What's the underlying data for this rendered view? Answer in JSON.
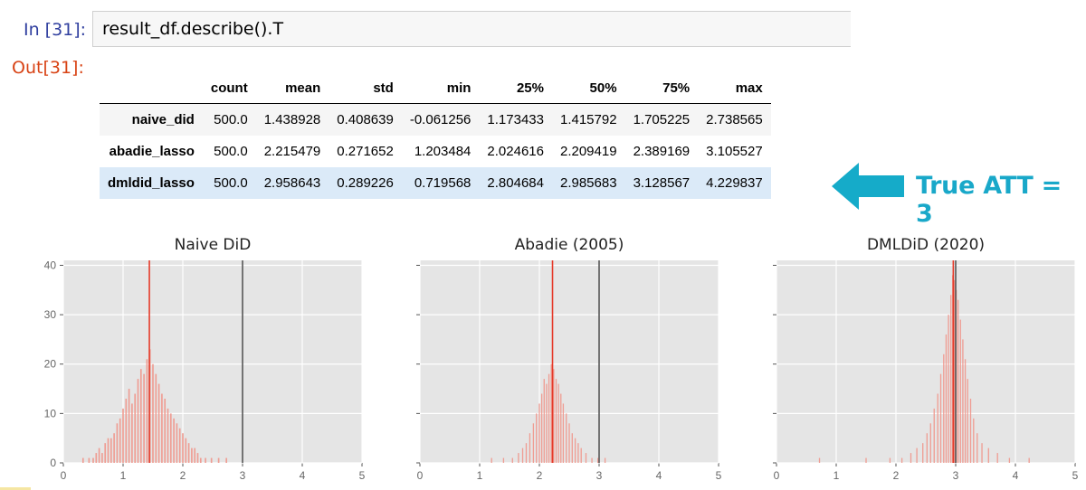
{
  "notebook": {
    "input_prompt": "In [31]:",
    "output_prompt": "Out[31]:",
    "code": "result_df.describe().T"
  },
  "table": {
    "columns": [
      "count",
      "mean",
      "std",
      "min",
      "25%",
      "50%",
      "75%",
      "max"
    ],
    "rows": [
      {
        "index": "naive_did",
        "values": [
          "500.0",
          "1.438928",
          "0.408639",
          "-0.061256",
          "1.173433",
          "1.415792",
          "1.705225",
          "2.738565"
        ]
      },
      {
        "index": "abadie_lasso",
        "values": [
          "500.0",
          "2.215479",
          "0.271652",
          "1.203484",
          "2.024616",
          "2.209419",
          "2.389169",
          "3.105527"
        ]
      },
      {
        "index": "dmldid_lasso",
        "values": [
          "500.0",
          "2.958643",
          "0.289226",
          "0.719568",
          "2.804684",
          "2.985683",
          "3.128567",
          "4.229837"
        ],
        "highlighted": true
      }
    ]
  },
  "annotation": {
    "text": "True ATT = 3",
    "color": "#19a8c9"
  },
  "colors": {
    "hist": "#ef9589",
    "mean_line": "#e53a2a",
    "true_line": "#555555",
    "plot_bg": "#e5e5e5"
  },
  "chart_data": [
    {
      "type": "bar",
      "title": "Naive DiD",
      "xlim": [
        0,
        5
      ],
      "ylim": [
        0,
        41
      ],
      "xticks": [
        "0",
        "1",
        "2",
        "3",
        "4",
        "5"
      ],
      "yticks": [
        "0",
        "10",
        "20",
        "30",
        "40"
      ],
      "grid": true,
      "mean_line": 1.44,
      "true_line": 3,
      "bin_width": 0.025,
      "x": [
        0.33,
        0.43,
        0.5,
        0.55,
        0.6,
        0.65,
        0.7,
        0.75,
        0.8,
        0.85,
        0.9,
        0.95,
        1.0,
        1.05,
        1.1,
        1.15,
        1.2,
        1.25,
        1.3,
        1.35,
        1.4,
        1.45,
        1.5,
        1.55,
        1.6,
        1.65,
        1.7,
        1.75,
        1.8,
        1.85,
        1.9,
        1.95,
        2.0,
        2.05,
        2.1,
        2.15,
        2.2,
        2.25,
        2.3,
        2.38,
        2.48,
        2.6,
        2.73
      ],
      "values": [
        1,
        1,
        1,
        2,
        3,
        2,
        4,
        5,
        5,
        6,
        8,
        9,
        11,
        13,
        15,
        12,
        14,
        17,
        19,
        18,
        21,
        23,
        20,
        18,
        16,
        14,
        13,
        11,
        10,
        9,
        8,
        7,
        6,
        5,
        4,
        3,
        3,
        2,
        1,
        1,
        1,
        1,
        1
      ]
    },
    {
      "type": "bar",
      "title": "Abadie (2005)",
      "xlim": [
        0,
        5
      ],
      "ylim": [
        0,
        41
      ],
      "xticks": [
        "0",
        "1",
        "2",
        "3",
        "4",
        "5"
      ],
      "yticks": [],
      "grid": true,
      "mean_line": 2.22,
      "true_line": 3,
      "bin_width": 0.02,
      "x": [
        1.2,
        1.4,
        1.55,
        1.65,
        1.72,
        1.78,
        1.84,
        1.9,
        1.95,
        2.0,
        2.04,
        2.08,
        2.12,
        2.16,
        2.2,
        2.24,
        2.28,
        2.32,
        2.36,
        2.4,
        2.45,
        2.5,
        2.55,
        2.6,
        2.65,
        2.7,
        2.78,
        2.88,
        2.98,
        3.1
      ],
      "values": [
        1,
        1,
        1,
        2,
        3,
        4,
        6,
        8,
        10,
        12,
        14,
        17,
        16,
        18,
        20,
        19,
        17,
        16,
        14,
        12,
        10,
        8,
        6,
        5,
        4,
        3,
        2,
        1,
        1,
        1
      ]
    },
    {
      "type": "bar",
      "title": "DMLDiD (2020)",
      "xlim": [
        0,
        5
      ],
      "ylim": [
        0,
        41
      ],
      "xticks": [
        "0",
        "1",
        "2",
        "3",
        "4",
        "5"
      ],
      "yticks": [],
      "grid": true,
      "mean_line": 2.96,
      "true_line": 3,
      "bin_width": 0.02,
      "x": [
        0.72,
        1.5,
        1.9,
        2.1,
        2.25,
        2.35,
        2.45,
        2.52,
        2.58,
        2.64,
        2.7,
        2.75,
        2.8,
        2.84,
        2.88,
        2.92,
        2.95,
        2.98,
        3.01,
        3.04,
        3.08,
        3.12,
        3.16,
        3.2,
        3.25,
        3.3,
        3.36,
        3.44,
        3.55,
        3.7,
        3.9,
        4.23
      ],
      "values": [
        1,
        1,
        1,
        1,
        2,
        3,
        4,
        6,
        8,
        11,
        14,
        18,
        22,
        26,
        30,
        34,
        38,
        37,
        35,
        33,
        29,
        25,
        21,
        17,
        13,
        9,
        6,
        4,
        3,
        2,
        1,
        1
      ]
    }
  ]
}
